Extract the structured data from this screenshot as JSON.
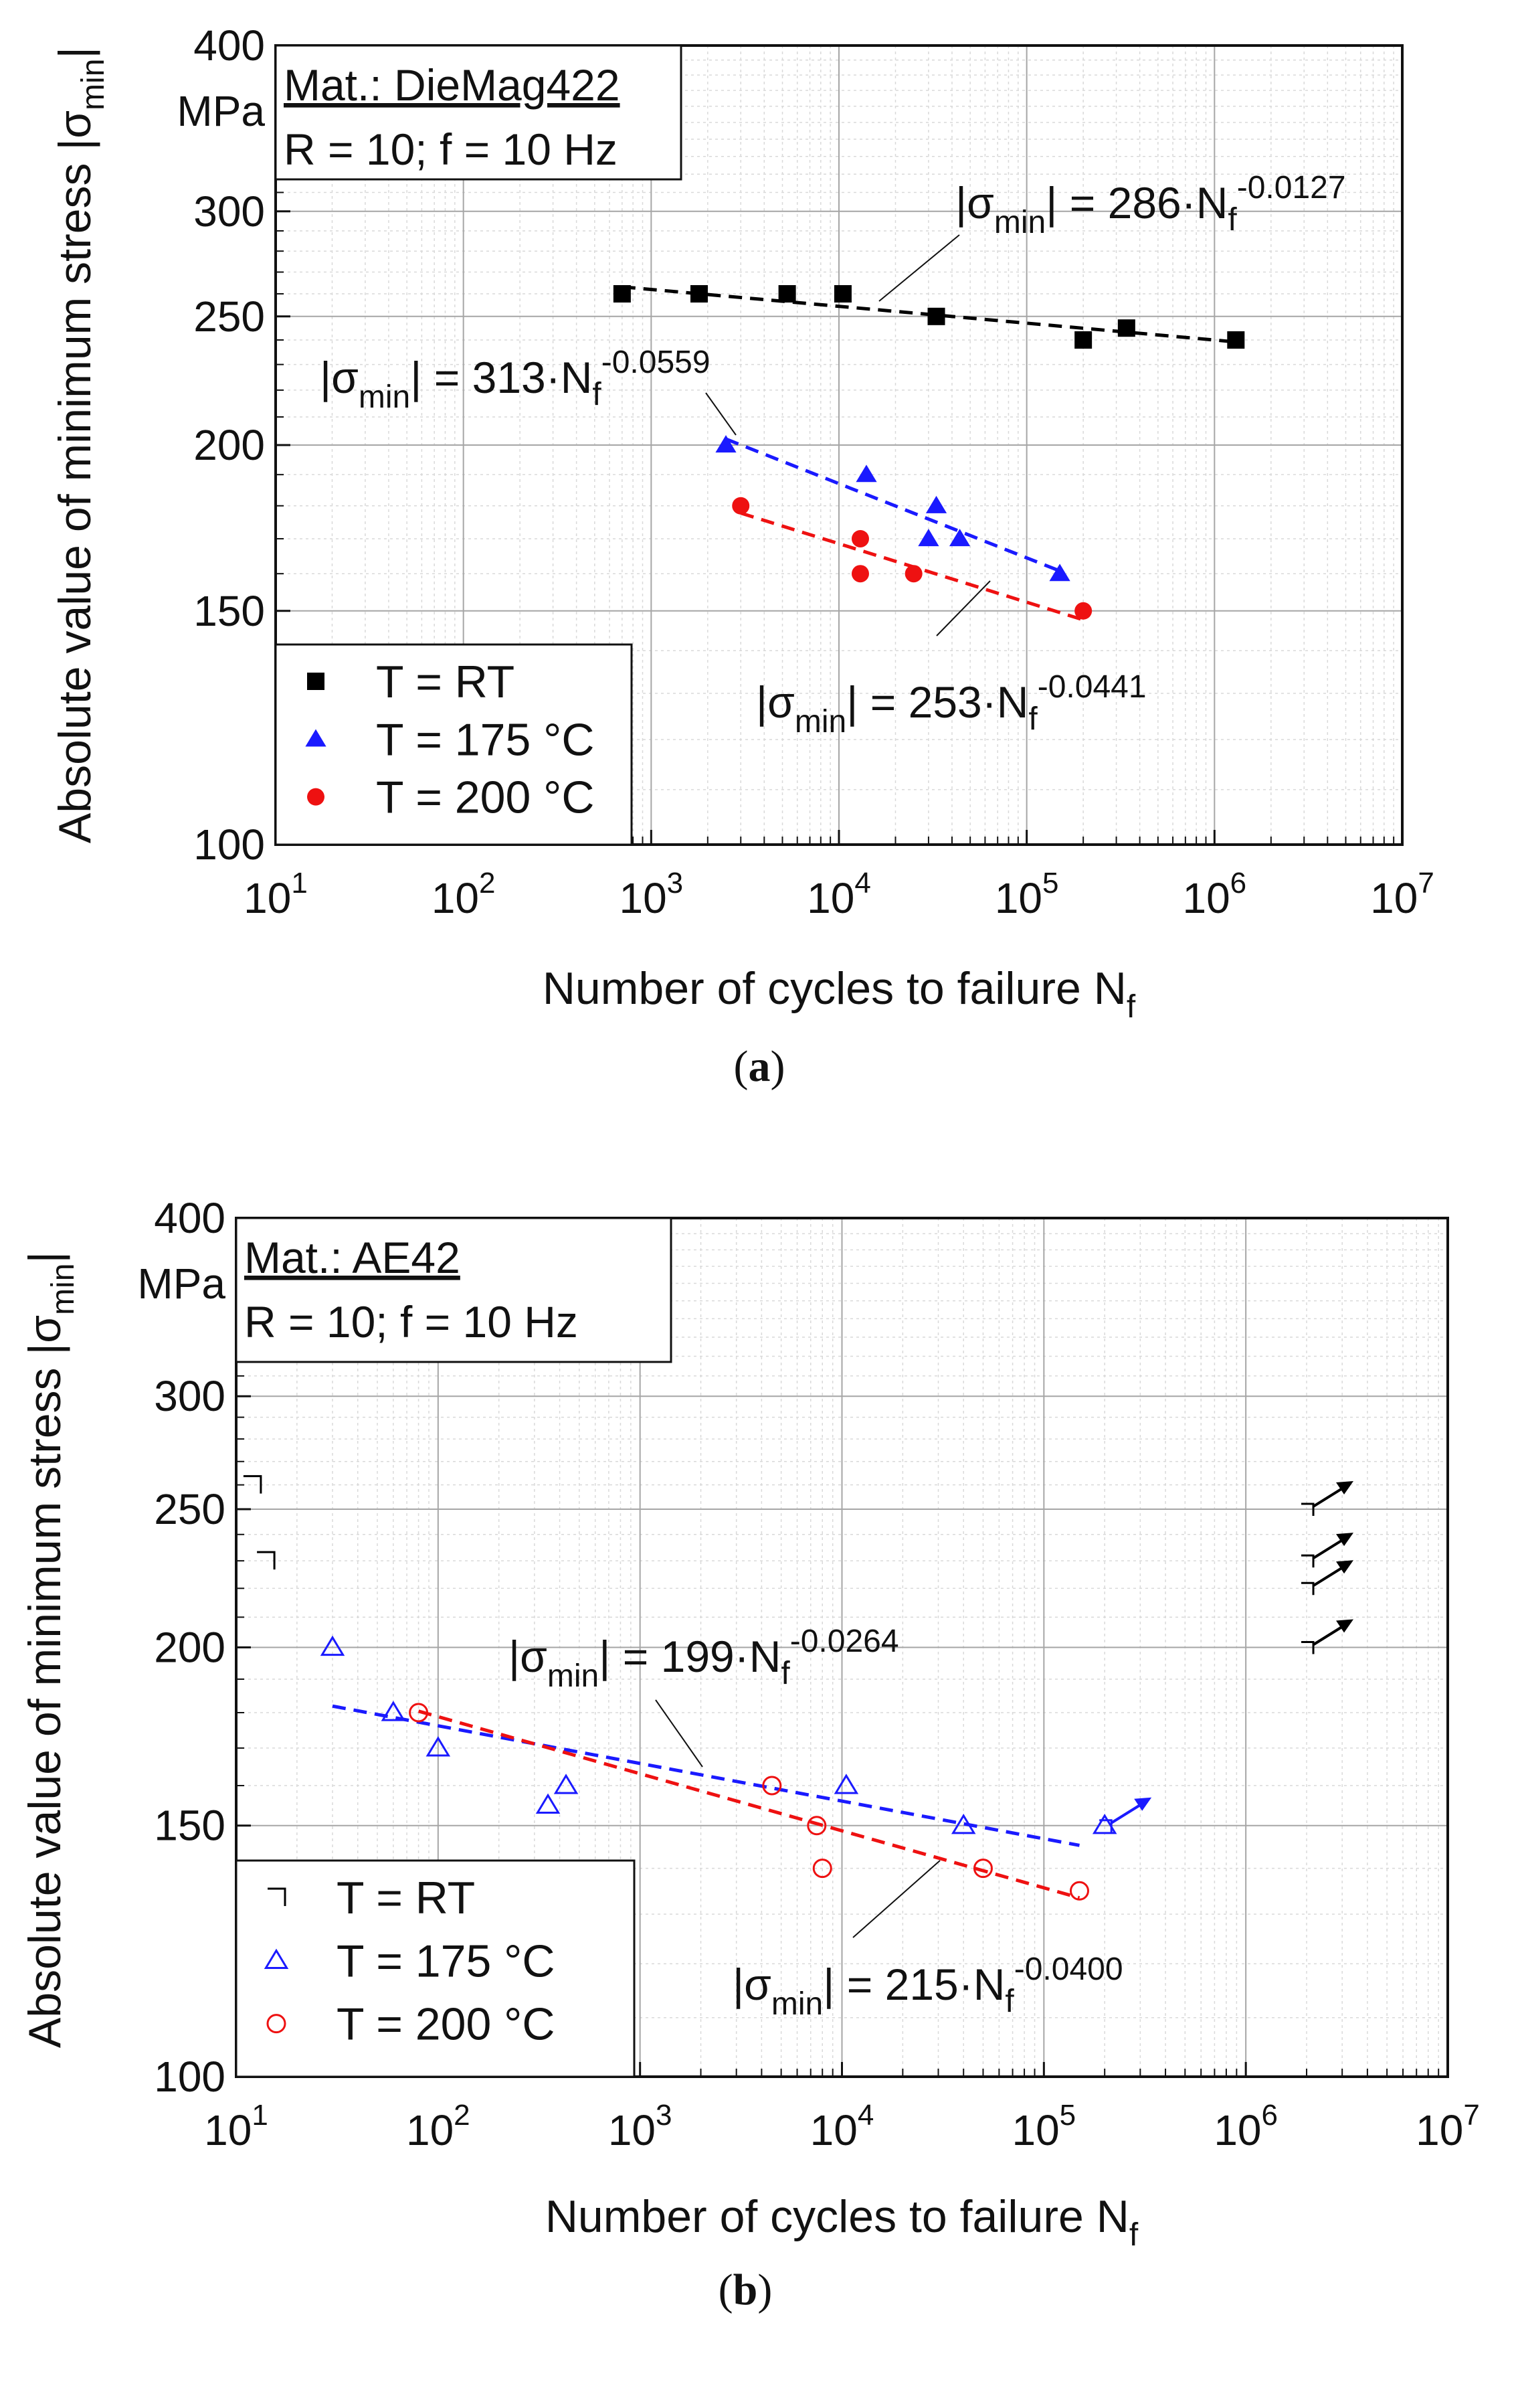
{
  "chart_data": [
    {
      "type": "scatter",
      "panel_label": "a",
      "info_material": "Mat.: DieMag422",
      "info_conditions": "R = 10; f = 10 Hz",
      "xlabel_main": "Number of cycles to failure N",
      "xlabel_sub": "f",
      "ylabel_main": "Absolute value of minimum stress |σ",
      "ylabel_sub": "min",
      "ylabel_end": "|",
      "y_unit": "MPa",
      "x_scale": "log",
      "y_scale": "log",
      "xlim": [
        10,
        10000000
      ],
      "ylim": [
        100,
        400
      ],
      "x_ticks": [
        {
          "value": 10,
          "base": "10",
          "exp": "1"
        },
        {
          "value": 100,
          "base": "10",
          "exp": "2"
        },
        {
          "value": 1000,
          "base": "10",
          "exp": "3"
        },
        {
          "value": 10000,
          "base": "10",
          "exp": "4"
        },
        {
          "value": 100000,
          "base": "10",
          "exp": "5"
        },
        {
          "value": 1000000,
          "base": "10",
          "exp": "6"
        },
        {
          "value": 10000000,
          "base": "10",
          "exp": "7"
        }
      ],
      "y_ticks": [
        {
          "value": 100,
          "label": "100"
        },
        {
          "value": 150,
          "label": "150"
        },
        {
          "value": 200,
          "label": "200"
        },
        {
          "value": 250,
          "label": "250"
        },
        {
          "value": 300,
          "label": "300"
        },
        {
          "value": 400,
          "label": "400"
        }
      ],
      "legend_position": "bottom-left",
      "series": [
        {
          "name": "T = RT",
          "marker": "square",
          "filled": true,
          "color": "#000000",
          "points": [
            [
              700,
              260
            ],
            [
              1800,
              260
            ],
            [
              5300,
              260
            ],
            [
              10500,
              260
            ],
            [
              33000,
              250
            ],
            [
              200000,
              240
            ],
            [
              340000,
              245
            ],
            [
              1300000,
              240
            ]
          ],
          "fit": {
            "coef": 286,
            "exp": -0.0127,
            "coef_label": "286",
            "exp_label": "-0.0127",
            "x_range": [
              700,
              1300000
            ]
          }
        },
        {
          "name": "T = 175 °C",
          "marker": "triangle",
          "filled": true,
          "color": "#1a1aff",
          "points": [
            [
              2500,
              200
            ],
            [
              14000,
              190
            ],
            [
              30000,
              170
            ],
            [
              33000,
              180
            ],
            [
              44000,
              170
            ],
            [
              150000,
              160
            ]
          ],
          "fit": {
            "coef": 313,
            "exp": -0.0559,
            "coef_label": "313",
            "exp_label": "-0.0559",
            "x_range": [
              2500,
              150000
            ]
          }
        },
        {
          "name": "T = 200 °C",
          "marker": "circle",
          "filled": true,
          "color": "#ee1111",
          "points": [
            [
              3000,
              180
            ],
            [
              13000,
              170
            ],
            [
              13000,
              160
            ],
            [
              25000,
              160
            ],
            [
              200000,
              150
            ]
          ],
          "fit": {
            "coef": 253,
            "exp": -0.0441,
            "coef_label": "253",
            "exp_label": "-0.0441",
            "x_range": [
              3000,
              200000
            ]
          }
        }
      ],
      "runouts": []
    },
    {
      "type": "scatter",
      "panel_label": "b",
      "info_material": "Mat.: AE42",
      "info_conditions": "R = 10; f = 10 Hz",
      "xlabel_main": "Number of cycles to failure N",
      "xlabel_sub": "f",
      "ylabel_main": "Absolute value of minimum stress |σ",
      "ylabel_sub": "min",
      "ylabel_end": "|",
      "y_unit": "MPa",
      "x_scale": "log",
      "y_scale": "log",
      "xlim": [
        10,
        10000000
      ],
      "ylim": [
        100,
        400
      ],
      "x_ticks": [
        {
          "value": 10,
          "base": "10",
          "exp": "1"
        },
        {
          "value": 100,
          "base": "10",
          "exp": "2"
        },
        {
          "value": 1000,
          "base": "10",
          "exp": "3"
        },
        {
          "value": 10000,
          "base": "10",
          "exp": "4"
        },
        {
          "value": 100000,
          "base": "10",
          "exp": "5"
        },
        {
          "value": 1000000,
          "base": "10",
          "exp": "6"
        },
        {
          "value": 10000000,
          "base": "10",
          "exp": "7"
        }
      ],
      "y_ticks": [
        {
          "value": 100,
          "label": "100"
        },
        {
          "value": 150,
          "label": "150"
        },
        {
          "value": 200,
          "label": "200"
        },
        {
          "value": 250,
          "label": "250"
        },
        {
          "value": 300,
          "label": "300"
        },
        {
          "value": 400,
          "label": "400"
        }
      ],
      "legend_position": "bottom-left",
      "series": [
        {
          "name": "T = RT",
          "marker": "square",
          "filled": false,
          "color": "#000000",
          "points": [
            [
              12,
              260
            ],
            [
              14,
              230
            ]
          ],
          "fit": null
        },
        {
          "name": "T = 175 °C",
          "marker": "triangle",
          "filled": false,
          "color": "#1a1aff",
          "points": [
            [
              30,
              200
            ],
            [
              60,
              180
            ],
            [
              100,
              170
            ],
            [
              350,
              155
            ],
            [
              430,
              160
            ],
            [
              10500,
              160
            ],
            [
              40000,
              150
            ],
            [
              200000,
              150
            ]
          ],
          "fit": {
            "coef": 199,
            "exp": -0.0264,
            "coef_label": "199",
            "exp_label": "-0.0264",
            "x_range": [
              30,
              150000
            ]
          }
        },
        {
          "name": "T = 200 °C",
          "marker": "circle",
          "filled": false,
          "color": "#ee1111",
          "points": [
            [
              80,
              180
            ],
            [
              4500,
              160
            ],
            [
              7500,
              150
            ],
            [
              8000,
              140
            ],
            [
              50000,
              140
            ],
            [
              150000,
              135
            ]
          ],
          "fit": {
            "coef": 215,
            "exp": -0.04,
            "coef_label": "215",
            "exp_label": "-0.0400",
            "x_range": [
              80,
              150000
            ]
          }
        }
      ],
      "runouts": [
        {
          "x": 2000000,
          "y": 250,
          "color": "#000000"
        },
        {
          "x": 2000000,
          "y": 230,
          "color": "#000000"
        },
        {
          "x": 2000000,
          "y": 220,
          "color": "#000000"
        },
        {
          "x": 2000000,
          "y": 200,
          "color": "#000000"
        },
        {
          "x": 200000,
          "y": 150,
          "color": "#1a1aff"
        }
      ]
    }
  ]
}
